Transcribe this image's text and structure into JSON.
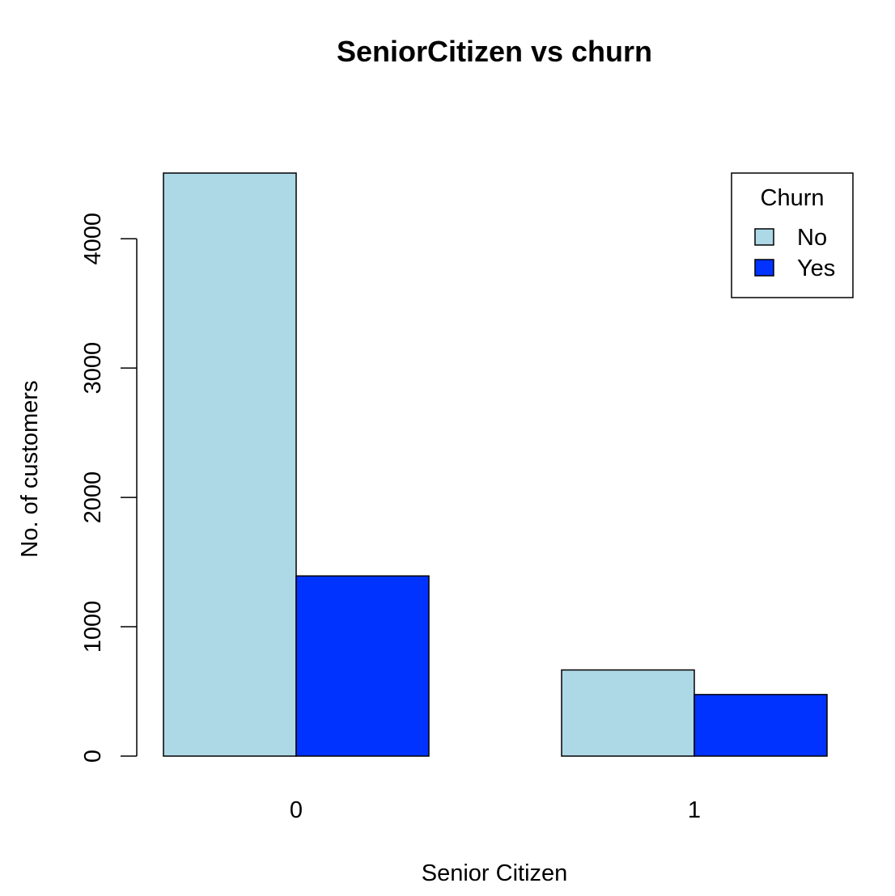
{
  "chart_data": {
    "type": "bar",
    "title": "SeniorCitizen vs churn",
    "xlabel": "Senior Citizen",
    "ylabel": "No. of customers",
    "categories": [
      "0",
      "1"
    ],
    "series": [
      {
        "name": "No",
        "values": [
          4508,
          666
        ]
      },
      {
        "name": "Yes",
        "values": [
          1393,
          476
        ]
      }
    ],
    "colors": {
      "No": "#add8e6",
      "Yes": "#0033ff"
    },
    "yticks": [
      0,
      1000,
      2000,
      3000,
      4000
    ],
    "ylim": [
      0,
      4508
    ],
    "grid": false,
    "legend": {
      "title": "Churn",
      "position": "top-right"
    }
  }
}
